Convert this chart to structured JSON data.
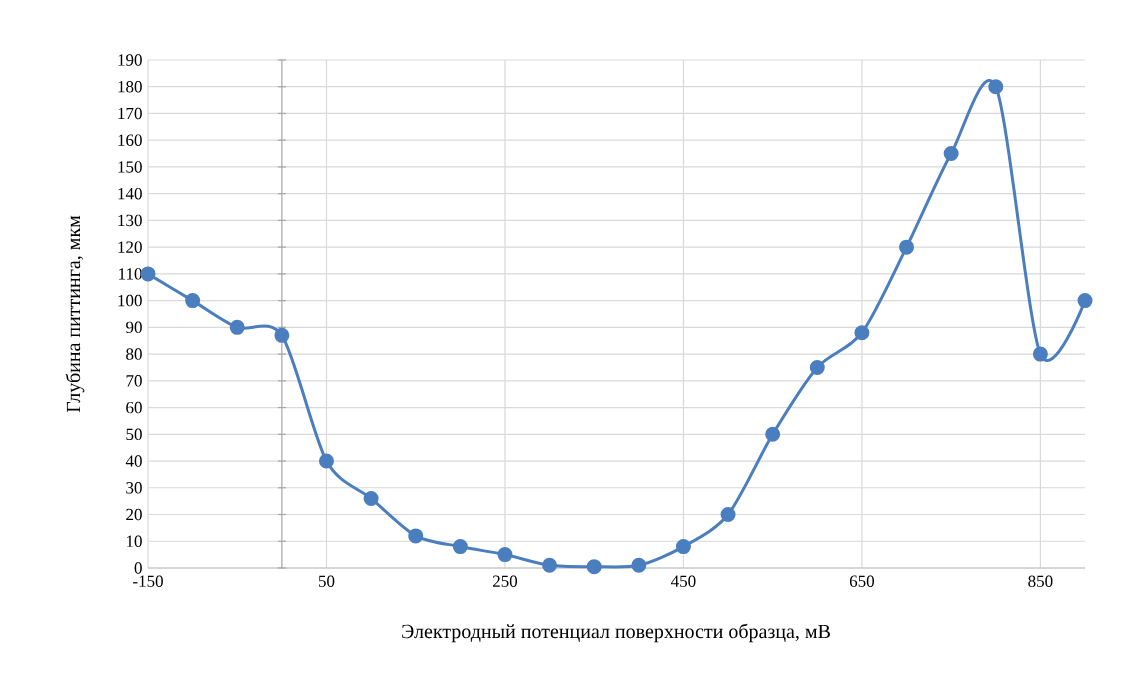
{
  "chart_data": {
    "type": "line",
    "xlabel": "Электродный потенциал поверхности образца, мВ",
    "ylabel": "Глубина питтинга, мкм",
    "x": [
      -150,
      -100,
      -50,
      0,
      50,
      100,
      150,
      200,
      250,
      300,
      350,
      400,
      450,
      500,
      550,
      600,
      650,
      700,
      750,
      800,
      850,
      900
    ],
    "series": [
      {
        "color": "#4a7ebf",
        "values": [
          110,
          100,
          90,
          87,
          40,
          26,
          12,
          8,
          5,
          1,
          0.5,
          1,
          8,
          20,
          50,
          75,
          88,
          120,
          155,
          180,
          80,
          100
        ]
      }
    ],
    "xlim": [
      -150,
      900
    ],
    "xticks": [
      -150,
      50,
      250,
      450,
      650,
      850
    ],
    "ylim": [
      0,
      190
    ],
    "yticks": [
      0,
      10,
      20,
      30,
      40,
      50,
      60,
      70,
      80,
      90,
      100,
      110,
      120,
      130,
      140,
      150,
      160,
      170,
      180,
      190
    ],
    "grid": true,
    "marker": "circle",
    "line_style": "solid",
    "ref_lines": [
      {
        "axis": "x",
        "value": 0,
        "color": "#a6a6a6"
      }
    ]
  }
}
